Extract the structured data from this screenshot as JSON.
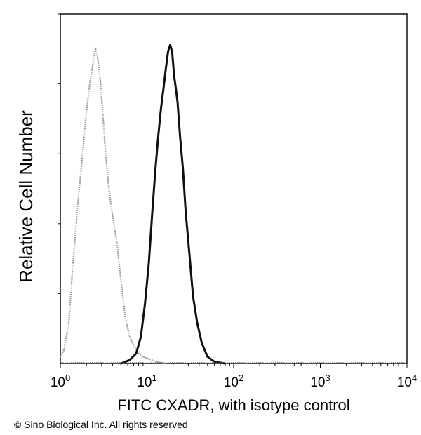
{
  "chart_data": {
    "type": "line",
    "title": "",
    "xlabel": "FITC CXADR, with isotype control",
    "ylabel": "Relative Cell Number",
    "xscale": "log",
    "xlim": [
      1,
      10000
    ],
    "ylim": [
      0,
      100
    ],
    "x_ticks": [
      {
        "base": "10",
        "exp": "0"
      },
      {
        "base": "10",
        "exp": "1"
      },
      {
        "base": "10",
        "exp": "2"
      },
      {
        "base": "10",
        "exp": "3"
      },
      {
        "base": "10",
        "exp": "4"
      }
    ],
    "grid": false,
    "series": [
      {
        "name": "isotype control",
        "style": "dotted light",
        "color": "#9a9a9a",
        "x": [
          1.0,
          1.1,
          1.25,
          1.4,
          1.6,
          1.8,
          2.0,
          2.2,
          2.4,
          2.55,
          2.7,
          2.9,
          3.1,
          3.3,
          3.6,
          4.0,
          4.5,
          5.0,
          5.6,
          6.3,
          7.1,
          8.0,
          9.0,
          10.0,
          11.5,
          13.0,
          16.0
        ],
        "y": [
          2,
          4,
          12,
          30,
          48,
          62,
          75,
          84,
          90,
          94,
          91,
          84,
          74,
          64,
          53,
          44,
          36,
          25,
          14,
          8,
          5,
          3,
          2,
          1.5,
          1,
          0.5,
          0
        ]
      },
      {
        "name": "CXADR",
        "style": "solid dark",
        "color": "#111111",
        "x": [
          5.0,
          6.3,
          7.5,
          8.5,
          9.5,
          10.5,
          11.5,
          12.5,
          13.5,
          14.5,
          15.5,
          16.5,
          17.5,
          18.5,
          19.5,
          20.5,
          21.5,
          22.5,
          24.0,
          26.0,
          28.0,
          31.0,
          34.0,
          38.0,
          43.0,
          50.0,
          60.0,
          80.0
        ],
        "y": [
          0,
          1,
          3,
          8,
          18,
          30,
          45,
          58,
          68,
          76,
          82,
          88,
          93,
          95,
          93,
          86,
          82,
          78,
          68,
          58,
          45,
          32,
          20,
          12,
          6,
          2,
          0.5,
          0
        ]
      }
    ],
    "legend": "none"
  },
  "footer": {
    "copyright": "© Sino Biological Inc. All rights reserved"
  }
}
